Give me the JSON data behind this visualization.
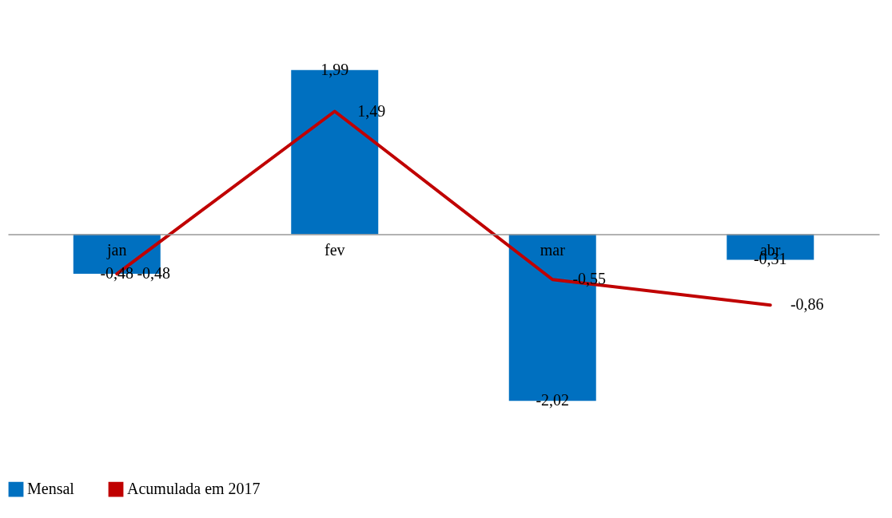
{
  "chart_data": {
    "type": "bar",
    "categories": [
      "jan",
      "fev",
      "mar",
      "abr"
    ],
    "series": [
      {
        "name": "Mensal",
        "color": "#0070c0",
        "values": [
          -0.48,
          1.99,
          -2.02,
          -0.31
        ],
        "value_labels": [
          "-0,48",
          "1,99",
          "-2,02",
          "-0,31"
        ]
      },
      {
        "name": "Acumulada em 2017",
        "type": "line",
        "color": "#c00000",
        "values": [
          -0.48,
          1.49,
          -0.55,
          -0.86
        ],
        "value_labels": [
          "-0,48",
          "1,49",
          "-0,55",
          "-0,86"
        ]
      }
    ],
    "legend": "bottom"
  }
}
